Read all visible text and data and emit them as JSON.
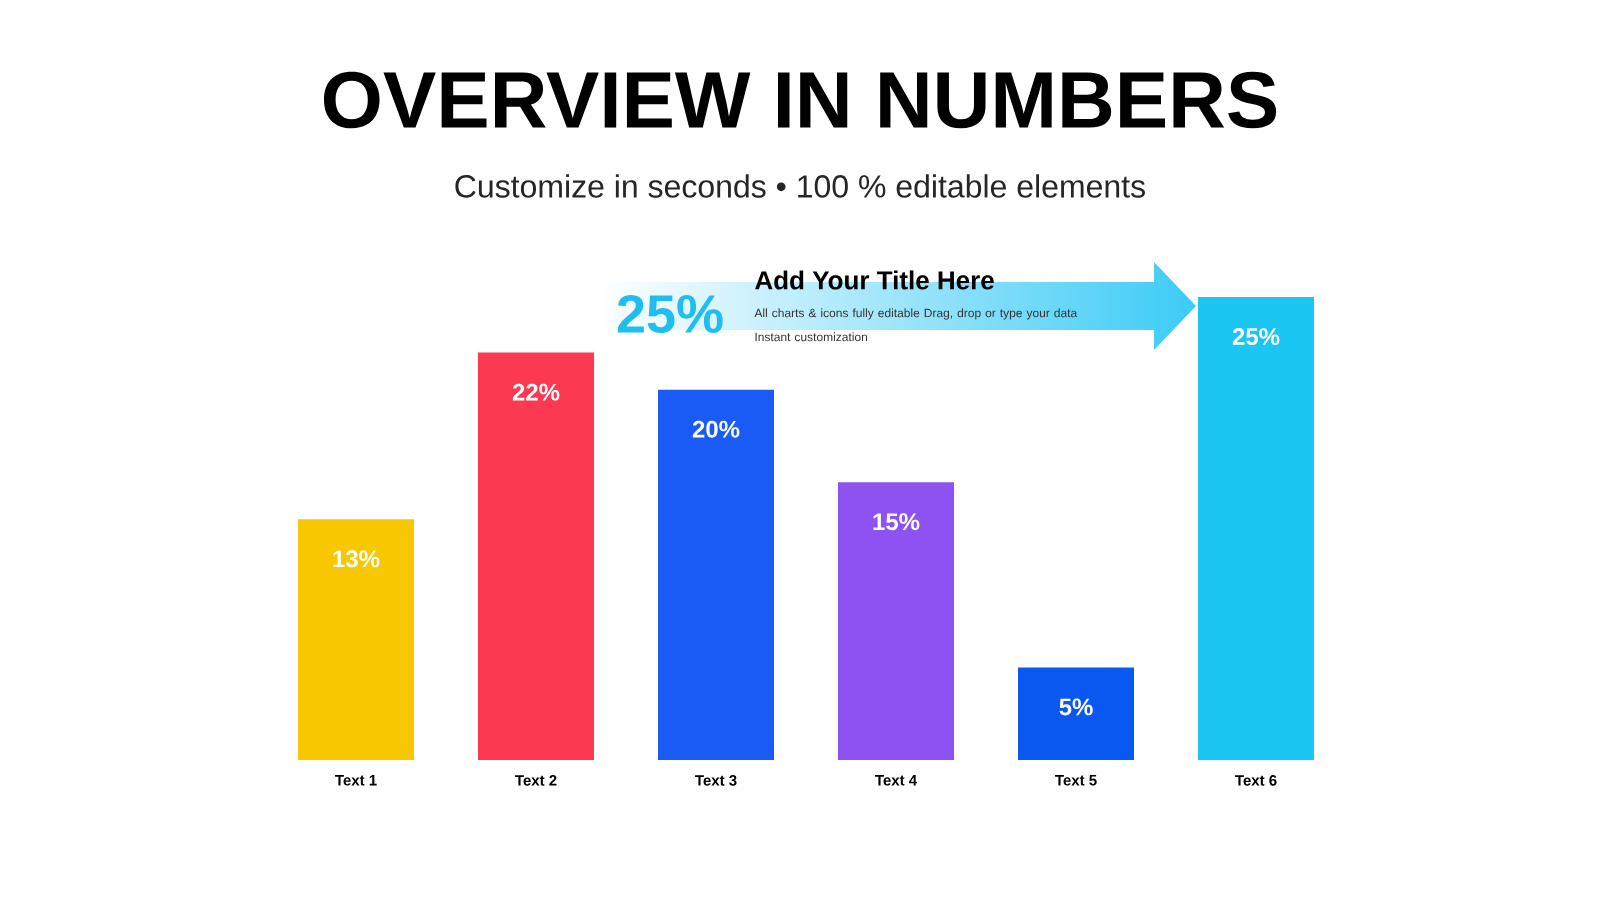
{
  "chart_data": {
    "type": "bar",
    "title": "OVERVIEW IN NUMBERS",
    "subtitle": "Customize in seconds • 100 % editable elements",
    "categories": [
      "Text 1",
      "Text 2",
      "Text 3",
      "Text 4",
      "Text 5",
      "Text 6"
    ],
    "values": [
      13,
      22,
      20,
      15,
      5,
      25
    ],
    "colors": [
      "#f7c800",
      "#fb3a52",
      "#1a5bf5",
      "#8e52f2",
      "#0b57f2",
      "#1cc6f2"
    ],
    "value_labels": [
      "13%",
      "22%",
      "20%",
      "15%",
      "5%",
      "25%"
    ],
    "ylim": [
      0,
      27
    ],
    "annotations": [
      "25%",
      "Add Your Title Here",
      "All charts & icons fully editable Drag, drop or type your data Instant customization"
    ]
  }
}
